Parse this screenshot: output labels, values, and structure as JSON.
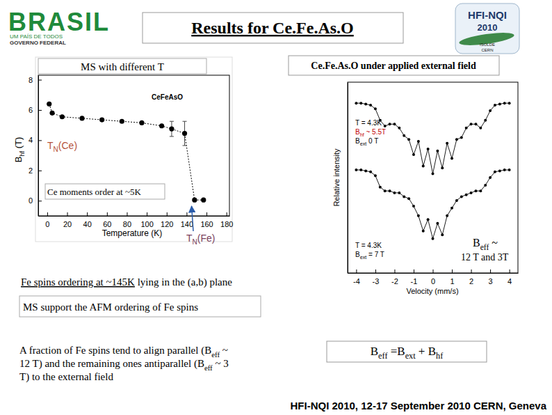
{
  "slide": {
    "title": "Results for Ce.Fe.As.O",
    "logo_left": [
      "BRASIL",
      "UM PAÍS DE TODOS",
      "GOVERNO FEDERAL"
    ],
    "logo_right": [
      "HFI-NQI",
      "2010",
      "ISOLDE",
      "CERN"
    ],
    "finding": [
      {
        "text": "Fe spins ordering at ~145K"
      },
      {
        "text": " lying in the (a,b) plane"
      }
    ],
    "support": "MS support the AFM ordering of Fe spins",
    "paragraph": [
      [
        {
          "text": "A fraction of Fe spins tend to align parallel (B"
        },
        {
          "text": "eff",
          "sub": true
        },
        {
          "text": " ~"
        }
      ],
      [
        {
          "text": "12 T) and the remaining ones antiparallel (B"
        },
        {
          "text": "eff",
          "sub": true
        },
        {
          "text": " ~ 3"
        }
      ],
      [
        {
          "text": "T) to the external field"
        }
      ]
    ],
    "field_values": [
      [
        {
          "text": "B"
        },
        {
          "text": "eff",
          "sub": true
        },
        {
          "text": " ~"
        }
      ],
      [
        {
          "text": "12 T  and 3T"
        }
      ]
    ],
    "equation": [
      {
        "text": "B"
      },
      {
        "text": "eff",
        "sub": true
      },
      {
        "text": " =B"
      },
      {
        "text": "ext",
        "sub": true
      },
      {
        "text": " + B"
      },
      {
        "text": "hf",
        "sub": true
      }
    ],
    "footer": "HFI-NQI 2010, 12-17 September 2010  CERN, Geneva"
  },
  "chart_data": [
    {
      "type": "scatter",
      "title": "MS  with  different T",
      "x_label": "Temperature (K)",
      "y_label": [
        {
          "text": "B"
        },
        {
          "text": "hf",
          "sub": true
        },
        {
          "text": " (T)"
        }
      ],
      "x": [
        2,
        5,
        15,
        35,
        55,
        75,
        95,
        115,
        125,
        138,
        148,
        157
      ],
      "series": [
        {
          "name": "CeFeAsO",
          "color": "#000000",
          "marker": "circle",
          "line_style": "dotted",
          "values": [
            6.4,
            5.8,
            5.55,
            5.45,
            5.35,
            5.25,
            5.15,
            4.95,
            4.75,
            4.45,
            0.05,
            0.05
          ],
          "errors": [
            0,
            0,
            0,
            0,
            0,
            0,
            0,
            0,
            0.5,
            0.8,
            0,
            0
          ]
        }
      ],
      "xlim": [
        -9,
        183
      ],
      "ylim": [
        -1,
        8.3
      ],
      "xticks": [
        0,
        20,
        40,
        60,
        80,
        100,
        120,
        140,
        160,
        180
      ],
      "yticks": [
        0,
        2,
        4,
        6,
        8
      ],
      "annotations": [
        {
          "label": [
            {
              "text": "T"
            },
            {
              "text": "N",
              "sub": true
            },
            {
              "text": "(Ce)"
            }
          ]
        },
        {
          "label": [
            {
              "text": "T"
            },
            {
              "text": "N",
              "sub": true
            },
            {
              "text": "(Fe)"
            }
          ],
          "x": 145
        },
        {
          "label": [
            {
              "text": "Ce moments order at ~5K"
            }
          ]
        }
      ]
    },
    {
      "type": "line",
      "title": "Ce.Fe.As.O under applied external field",
      "x_label": "Velocity (mm/s)",
      "y_label": "Relative intensity",
      "tick_labels": "x",
      "x": [
        -4,
        -3.75,
        -3.5,
        -3.25,
        -3,
        -2.75,
        -2.5,
        -2.25,
        -2,
        -1.75,
        -1.5,
        -1.25,
        -1,
        -0.75,
        -0.5,
        -0.25,
        0,
        0.25,
        0.5,
        0.75,
        1,
        1.25,
        1.5,
        1.75,
        2,
        2.25,
        2.5,
        2.75,
        3,
        3.25,
        3.5,
        3.75,
        4
      ],
      "series": [
        {
          "color": "#000000",
          "marker": "circle",
          "line_style": "solid",
          "values": [
            8.9,
            8.9,
            8.85,
            8.8,
            8.6,
            8.0,
            7.7,
            7.8,
            7.8,
            7.6,
            7.2,
            7.0,
            6.2,
            6.9,
            5.6,
            6.5,
            5.2,
            6.4,
            5.5,
            6.8,
            6.0,
            7.0,
            7.1,
            7.6,
            7.8,
            7.8,
            7.6,
            8.0,
            8.5,
            8.8,
            8.85,
            8.9,
            8.9
          ]
        },
        {
          "color": "#000000",
          "marker": "circle",
          "line_style": "solid",
          "values": [
            5.4,
            5.4,
            5.35,
            5.3,
            5.1,
            4.5,
            4.3,
            4.3,
            4.2,
            4.2,
            4.0,
            3.9,
            3.5,
            3.0,
            2.2,
            2.8,
            1.8,
            2.6,
            2.0,
            3.0,
            3.4,
            3.8,
            4.0,
            4.1,
            4.2,
            4.3,
            4.3,
            4.6,
            5.0,
            5.3,
            5.35,
            5.4,
            5.4
          ]
        }
      ],
      "xlim": [
        -4.45,
        4.45
      ],
      "ylim": [
        0,
        10
      ],
      "xticks": [
        -4,
        -3,
        -2,
        -1,
        0,
        1,
        2,
        3,
        4
      ],
      "annotations": [
        [
          [
            {
              "text": "T = 4.3K"
            }
          ],
          [
            {
              "text": "B"
            },
            {
              "text": "hf",
              "sub": true
            },
            {
              "text": " ~ 5.5T"
            }
          ],
          [
            {
              "text": "B"
            },
            {
              "text": "ext",
              "sub": true
            },
            {
              "text": "  0 T"
            }
          ]
        ],
        [
          [
            {
              "text": "T = 4.3K"
            }
          ],
          [
            {
              "text": "B"
            },
            {
              "text": "ext",
              "sub": true
            },
            {
              "text": " = 7 T"
            }
          ]
        ]
      ]
    }
  ]
}
